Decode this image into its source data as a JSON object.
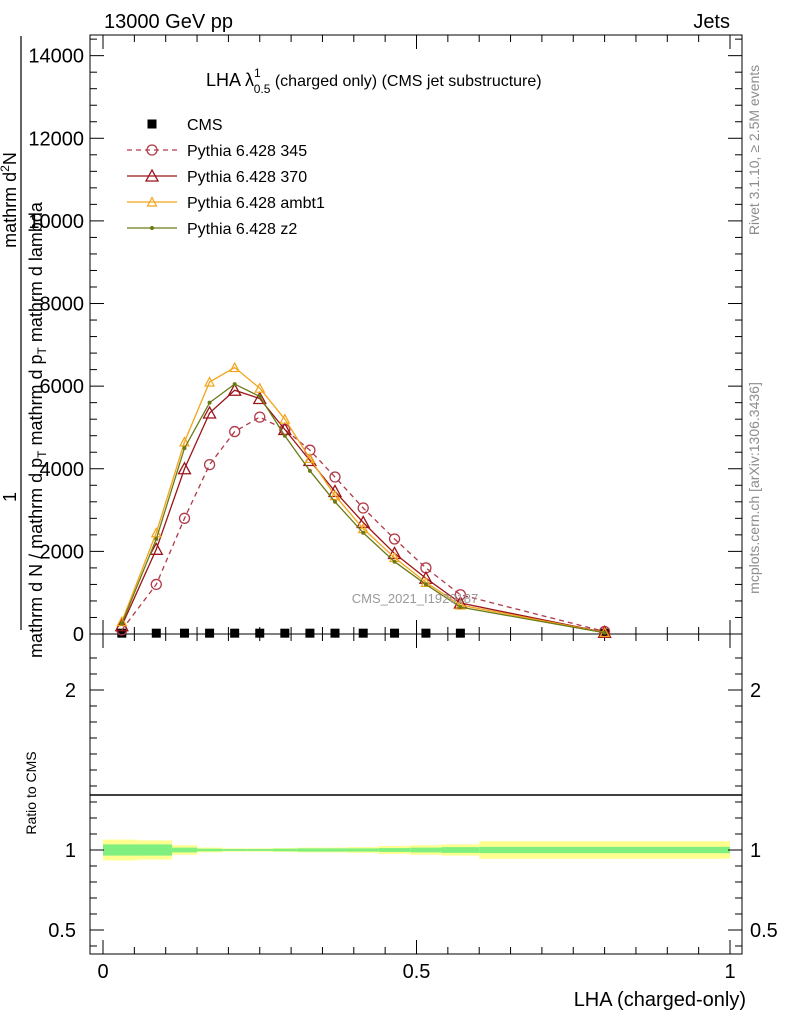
{
  "header": {
    "left": "13000 GeV pp",
    "right": "Jets"
  },
  "side_text": {
    "rivet": "Rivet 3.1.10, ≥ 2.5M events",
    "site": "mcplots.cern.ch [arXiv:1306.3436]"
  },
  "watermark": "CMS_2021_I1920187",
  "chart_data": {
    "type": "line",
    "title": {
      "main": "LHA λ",
      "sup": "1",
      "sub": "0.5",
      "rest": " (charged only) (CMS jet substructure)"
    },
    "xlabel": "LHA (charged-only)",
    "ylabel_main": [
      "1",
      "mathrm d N / mathrm d p",
      "T",
      "mathrm d p",
      "T",
      "mathrm d lambda",
      "mathrm d",
      "2",
      "N"
    ],
    "ylabel_ratio": "Ratio to CMS",
    "xlim": [
      0,
      1
    ],
    "ylim_main": [
      0,
      14500
    ],
    "ylim_ratio": [
      0.35,
      2.35
    ],
    "x_ticks": [
      "0",
      "0.5",
      "1"
    ],
    "y_ticks_main": [
      "0",
      "2000",
      "4000",
      "6000",
      "8000",
      "10000",
      "12000",
      "14000"
    ],
    "y_ticks_ratio": [
      "0.5",
      "1",
      "2"
    ],
    "legend_position": "top-left",
    "series": [
      {
        "name": "CMS",
        "color": "#000000",
        "marker": "square",
        "x": [
          0.03,
          0.085,
          0.13,
          0.17,
          0.21,
          0.25,
          0.29,
          0.33,
          0.37,
          0.415,
          0.465,
          0.515,
          0.57,
          0.8
        ],
        "y": [
          20,
          20,
          20,
          20,
          20,
          20,
          20,
          20,
          20,
          20,
          20,
          20,
          20,
          20
        ]
      },
      {
        "name": "Pythia 6.428 345",
        "color": "#b03a48",
        "marker": "open-circle",
        "dashed": true,
        "x": [
          0.03,
          0.085,
          0.13,
          0.17,
          0.21,
          0.25,
          0.29,
          0.33,
          0.37,
          0.415,
          0.465,
          0.515,
          0.57,
          0.8
        ],
        "y": [
          100,
          1200,
          2800,
          4100,
          4900,
          5250,
          4950,
          4450,
          3800,
          3050,
          2300,
          1600,
          950,
          60
        ]
      },
      {
        "name": "Pythia 6.428 370",
        "color": "#9b1418",
        "marker": "open-triangle",
        "x": [
          0.03,
          0.085,
          0.13,
          0.17,
          0.21,
          0.25,
          0.29,
          0.33,
          0.37,
          0.415,
          0.465,
          0.515,
          0.57,
          0.8
        ],
        "y": [
          200,
          2050,
          4000,
          5350,
          5900,
          5700,
          4950,
          4200,
          3450,
          2700,
          1950,
          1350,
          750,
          40
        ]
      },
      {
        "name": "Pythia 6.428 ambt1",
        "color": "#f2a51a",
        "marker": "open-triangle-small",
        "x": [
          0.03,
          0.085,
          0.13,
          0.17,
          0.21,
          0.25,
          0.29,
          0.33,
          0.37,
          0.415,
          0.465,
          0.515,
          0.57,
          0.8
        ],
        "y": [
          300,
          2450,
          4650,
          6100,
          6450,
          5950,
          5200,
          4250,
          3350,
          2550,
          1850,
          1250,
          700,
          35
        ]
      },
      {
        "name": "Pythia 6.428 z2",
        "color": "#6b7a14",
        "marker": "dot",
        "x": [
          0.03,
          0.085,
          0.13,
          0.17,
          0.21,
          0.25,
          0.29,
          0.33,
          0.37,
          0.415,
          0.465,
          0.515,
          0.57,
          0.8
        ],
        "y": [
          250,
          2300,
          4500,
          5600,
          6050,
          5750,
          4800,
          3950,
          3200,
          2450,
          1750,
          1200,
          650,
          30
        ]
      }
    ],
    "ratio_band": {
      "x_edges": [
        0,
        0.055,
        0.11,
        0.15,
        0.19,
        0.23,
        0.27,
        0.31,
        0.35,
        0.39,
        0.44,
        0.49,
        0.54,
        0.6,
        1.0
      ],
      "inner_half": [
        0.035,
        0.035,
        0.015,
        0.008,
        0.006,
        0.006,
        0.008,
        0.01,
        0.01,
        0.01,
        0.012,
        0.015,
        0.018,
        0.02
      ],
      "outer_half": [
        0.065,
        0.06,
        0.03,
        0.015,
        0.01,
        0.01,
        0.012,
        0.015,
        0.015,
        0.018,
        0.025,
        0.03,
        0.035,
        0.055
      ],
      "inner_color": "#7ff07f",
      "outer_color": "#ffff90"
    }
  }
}
